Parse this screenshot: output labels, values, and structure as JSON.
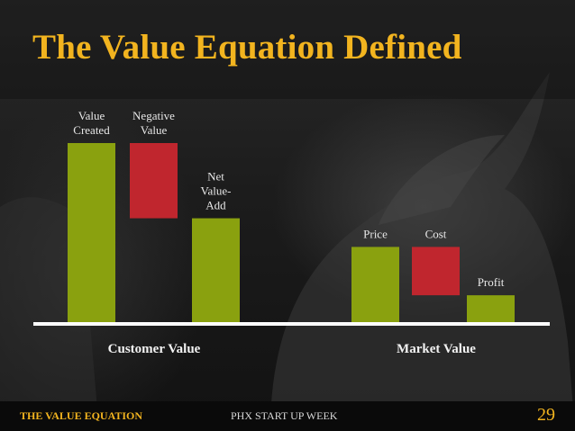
{
  "slide": {
    "title": "The Value Equation Defined",
    "footer_left": "THE VALUE EQUATION",
    "footer_center": "PHX START UP WEEK",
    "page_number": "29"
  },
  "colors": {
    "accent": "#f2b41f",
    "positive": "#8aa10f",
    "negative": "#c0262e",
    "baseline": "#ffffff"
  },
  "chart_data": {
    "type": "bar",
    "groups": [
      {
        "name": "Customer Value",
        "bars": [
          {
            "label": "Value Created",
            "label_lines": [
              "Value",
              "Created"
            ],
            "start": 0,
            "end": 100,
            "kind": "positive"
          },
          {
            "label": "Negative Value",
            "label_lines": [
              "Negative",
              "Value"
            ],
            "start": 100,
            "end": 58,
            "kind": "negative"
          },
          {
            "label": "Net Value-Add",
            "label_lines": [
              "Net",
              "Value-",
              "Add"
            ],
            "start": 0,
            "end": 58,
            "kind": "positive"
          }
        ]
      },
      {
        "name": "Market Value",
        "bars": [
          {
            "label": "Price",
            "label_lines": [
              "Price"
            ],
            "start": 0,
            "end": 42,
            "kind": "positive"
          },
          {
            "label": "Cost",
            "label_lines": [
              "Cost"
            ],
            "start": 42,
            "end": 15,
            "kind": "negative"
          },
          {
            "label": "Profit",
            "label_lines": [
              "Profit"
            ],
            "start": 0,
            "end": 15,
            "kind": "positive"
          }
        ]
      }
    ],
    "ylim": [
      0,
      100
    ],
    "grid": false,
    "legend": "none",
    "axis": "baseline only"
  }
}
